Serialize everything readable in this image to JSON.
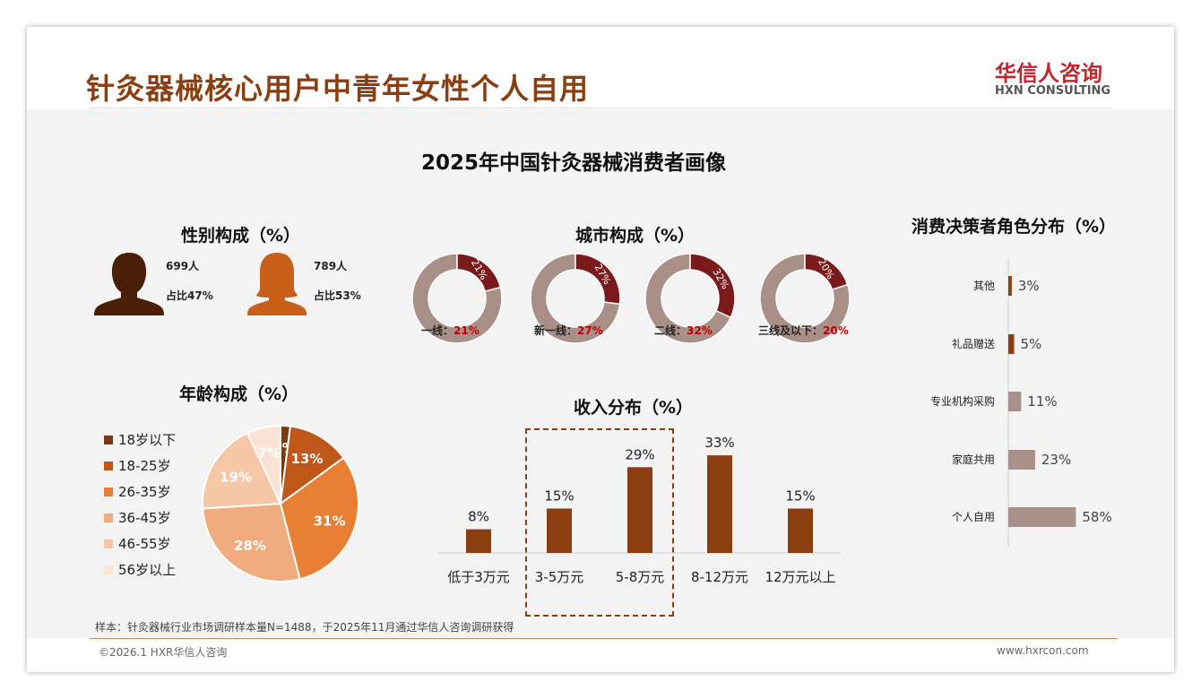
{
  "header": {
    "title": "针灸器械核心用户中青年女性个人自用",
    "logo_brand": "华信人咨询",
    "logo_sub": "HXN CONSULTING"
  },
  "main_title": "2025年中国针灸器械消费者画像",
  "colors": {
    "brand": "#8b3e0f",
    "donut_dark": "#7b1a1a",
    "donut_light": "#a88f87"
  },
  "gender": {
    "title": "性别构成（%）",
    "male": {
      "count": "699人",
      "share": "占比47%"
    },
    "female": {
      "count": "789人",
      "share": "占比53%"
    }
  },
  "footer": {
    "sample": "样本：针灸器械行业市场调研样本量N=1488，于2025年11月通过华信人咨询调研获得",
    "copyright": "©2026.1 HXR华信人咨询",
    "website": "www.hxrcon.com"
  },
  "chart_data": [
    {
      "type": "pie",
      "title": "城市构成（%）",
      "categories": [
        "一线",
        "新一线",
        "二线",
        "三线及以下"
      ],
      "values": [
        21,
        27,
        32,
        20
      ],
      "labels": [
        "21%",
        "27%",
        "32%",
        "20%"
      ],
      "label_prefix": [
        "一线：",
        "新一线：",
        "二线：",
        "三线及以下："
      ]
    },
    {
      "type": "pie",
      "title": "年龄构成（%）",
      "categories": [
        "18岁以下",
        "18-25岁",
        "26-35岁",
        "36-45岁",
        "46-55岁",
        "56岁以上"
      ],
      "values": [
        2,
        13,
        31,
        28,
        19,
        7
      ],
      "labels": [
        "2%",
        "13%",
        "31%",
        "28%",
        "19%",
        "7%"
      ],
      "colors": [
        "#7a3a10",
        "#c0571a",
        "#e77f35",
        "#f0ac7e",
        "#f5c7a6",
        "#fbe3d3"
      ],
      "legend": "left"
    },
    {
      "type": "bar",
      "title": "收入分布（%）",
      "categories": [
        "低于3万元",
        "3-5万元",
        "5-8万元",
        "8-12万元",
        "12万元以上"
      ],
      "values": [
        8,
        15,
        29,
        33,
        15
      ],
      "labels": [
        "8%",
        "15%",
        "29%",
        "33%",
        "15%"
      ],
      "highlight": [
        "3-5万元",
        "5-8万元"
      ]
    },
    {
      "type": "bar",
      "orientation": "horizontal",
      "title": "消费决策者角色分布（%）",
      "categories": [
        "其他",
        "礼品赠送",
        "专业机构采购",
        "家庭共用",
        "个人自用"
      ],
      "values": [
        3,
        5,
        11,
        23,
        58
      ],
      "labels": [
        "3%",
        "5%",
        "11%",
        "23%",
        "58%"
      ]
    }
  ]
}
